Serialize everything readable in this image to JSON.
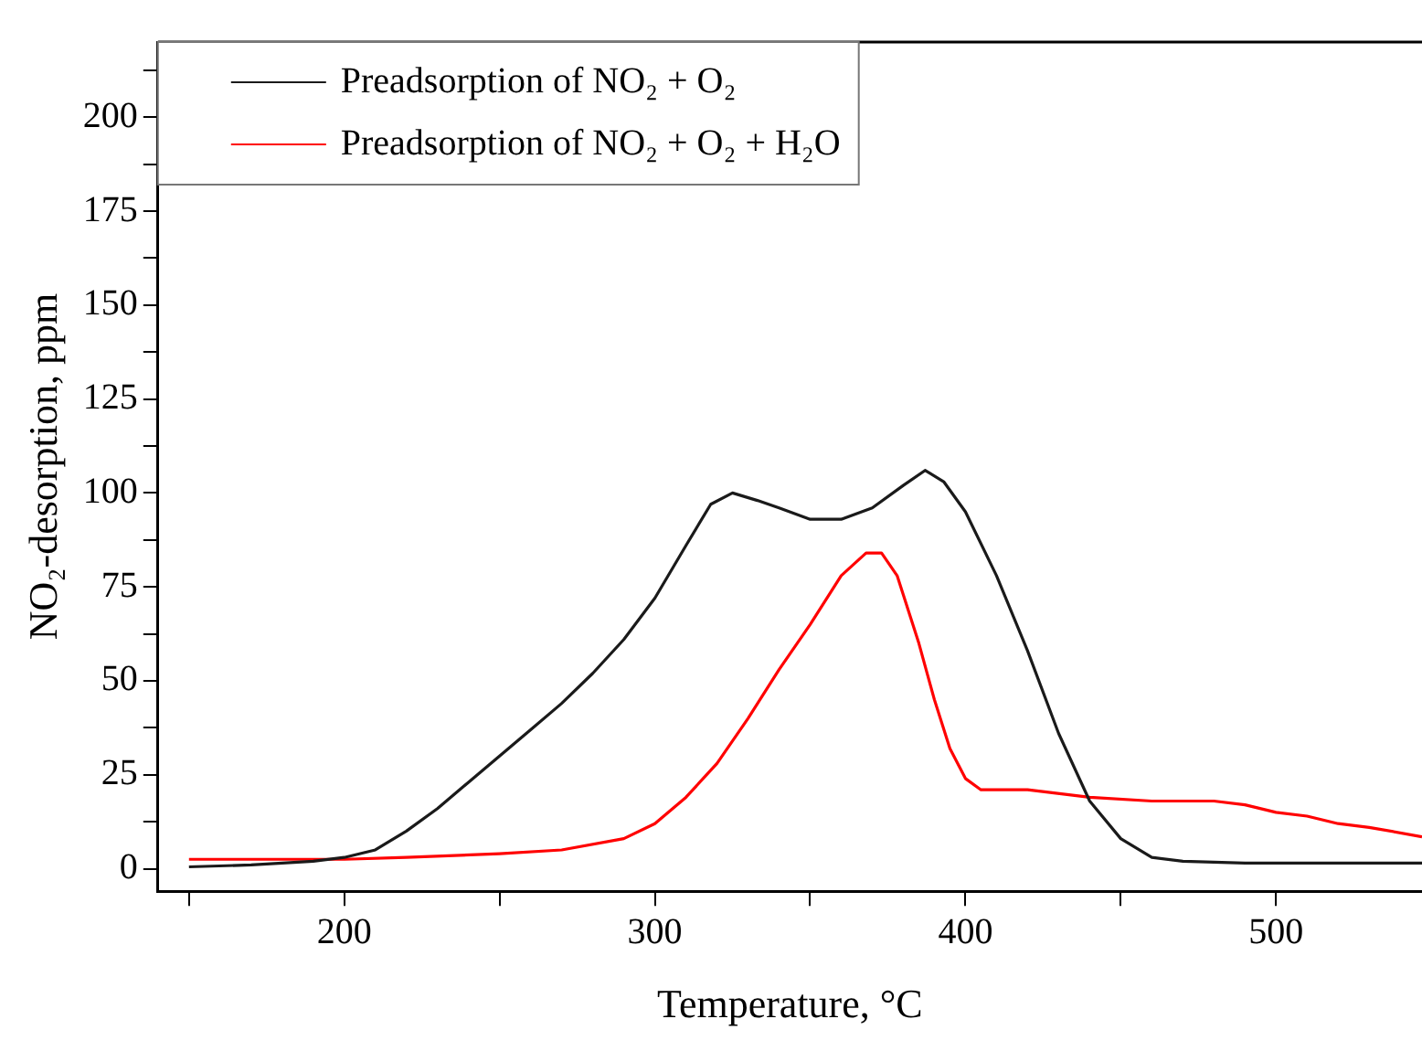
{
  "chart_data": {
    "type": "line",
    "xlabel": "Temperature, °C",
    "ylabel": "NO₂-desorption, ppm",
    "xlim": [
      140,
      547
    ],
    "ylim": [
      -6,
      220
    ],
    "xticks": [
      {
        "value": 150,
        "label": null
      },
      200,
      {
        "value": 250,
        "label": null
      },
      300,
      {
        "value": 350,
        "label": null
      },
      400,
      {
        "value": 450,
        "label": null
      },
      500
    ],
    "yticks": [
      0,
      {
        "value": 12.5,
        "label": null
      },
      25,
      {
        "value": 37.5,
        "label": null
      },
      50,
      {
        "value": 62.5,
        "label": null
      },
      75,
      {
        "value": 87.5,
        "label": null
      },
      100,
      {
        "value": 112.5,
        "label": null
      },
      125,
      {
        "value": 137.5,
        "label": null
      },
      150,
      {
        "value": 162.5,
        "label": null
      },
      175,
      {
        "value": 187.5,
        "label": null
      },
      200,
      {
        "value": 212.5,
        "label": null
      }
    ],
    "grid": false,
    "legend": "top left",
    "marker": "none",
    "line_style": "solid",
    "x": [
      150,
      170,
      190,
      200,
      210,
      220,
      230,
      240,
      250,
      260,
      270,
      280,
      290,
      300,
      310,
      318,
      325,
      333,
      340,
      350,
      360,
      370,
      380,
      387,
      393,
      400,
      410,
      420,
      430,
      440,
      450,
      460,
      470,
      490,
      510,
      530,
      547
    ],
    "series": [
      {
        "name": "Preadsorption of NO₂ + O₂",
        "color": "#1a1a1a",
        "values": [
          0.5,
          1,
          2,
          3,
          5,
          10,
          16,
          23,
          30,
          37,
          44,
          52,
          61,
          72,
          86,
          97,
          100,
          98,
          96,
          93,
          93,
          96,
          102,
          106,
          103,
          95,
          78,
          58,
          36,
          18,
          8,
          3,
          2,
          1.5,
          1.5,
          1.5,
          1.5
        ]
      },
      {
        "name": "Preadsorption of NO₂ + O₂ + H₂O",
        "color": "#ff0000",
        "x": [
          150,
          170,
          200,
          220,
          250,
          270,
          290,
          300,
          310,
          320,
          330,
          340,
          350,
          360,
          368,
          373,
          378,
          385,
          390,
          395,
          400,
          405,
          420,
          440,
          460,
          480,
          490,
          500,
          510,
          520,
          530,
          547
        ],
        "values": [
          2.5,
          2.5,
          2.5,
          3,
          4,
          5,
          8,
          12,
          19,
          28,
          40,
          53,
          65,
          78,
          84,
          84,
          78,
          60,
          45,
          32,
          24,
          21,
          21,
          19,
          18,
          18,
          17,
          15,
          14,
          12,
          11,
          8.5
        ]
      }
    ]
  }
}
